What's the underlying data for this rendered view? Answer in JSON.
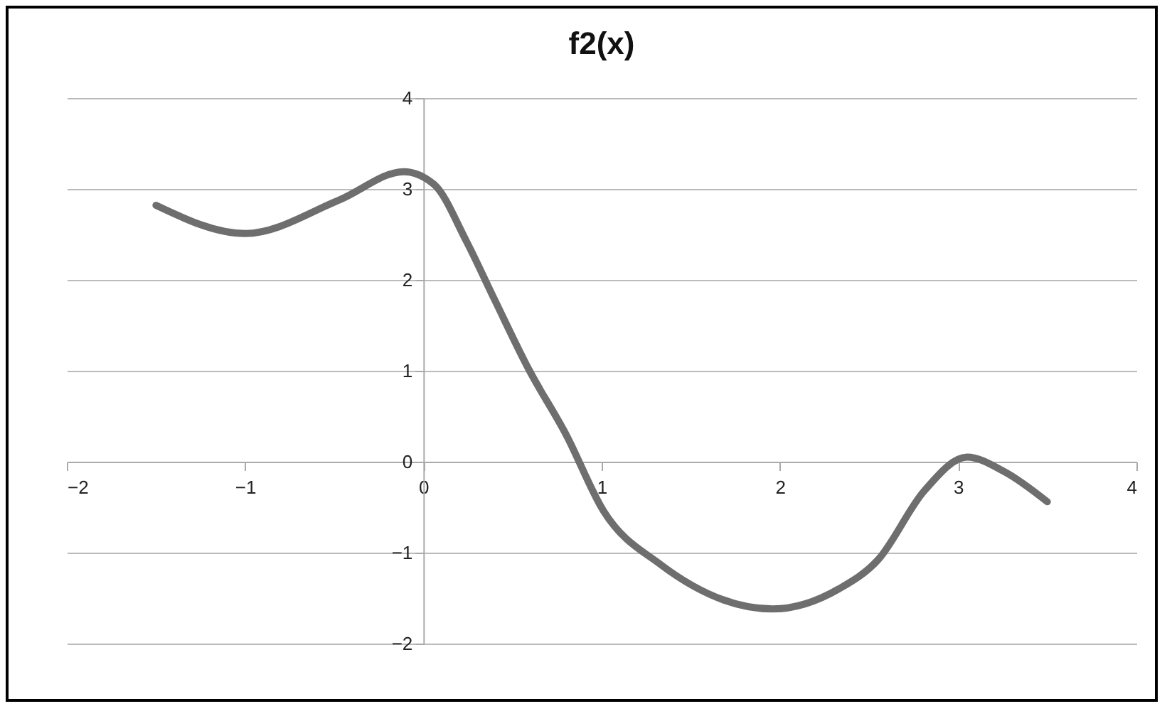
{
  "chart_data": {
    "type": "line",
    "title": "f2(x)",
    "x": [
      -1.5,
      -1.0,
      -0.47,
      -0.11,
      0.06,
      0.24,
      0.4,
      0.59,
      0.8,
      1.01,
      1.33,
      1.96,
      2.33,
      2.55,
      2.81,
      3.05,
      3.26,
      3.5
    ],
    "series": [
      {
        "color": "#6e6e6e",
        "values": [
          2.82,
          2.51,
          2.88,
          3.19,
          3.05,
          2.43,
          1.78,
          1.02,
          0.3,
          -0.54,
          -1.13,
          -1.62,
          -1.4,
          -1.08,
          -0.32,
          0.05,
          -0.11,
          -0.44
        ]
      }
    ],
    "xlim": [
      -2,
      4
    ],
    "xticks": [
      -2,
      -1,
      0,
      1,
      2,
      3,
      4
    ],
    "ylim": [
      -2,
      4
    ],
    "yticks": [
      -2,
      -1,
      0,
      1,
      2,
      3,
      4
    ],
    "grid": "y",
    "marker": "none",
    "line_style": "solid"
  }
}
